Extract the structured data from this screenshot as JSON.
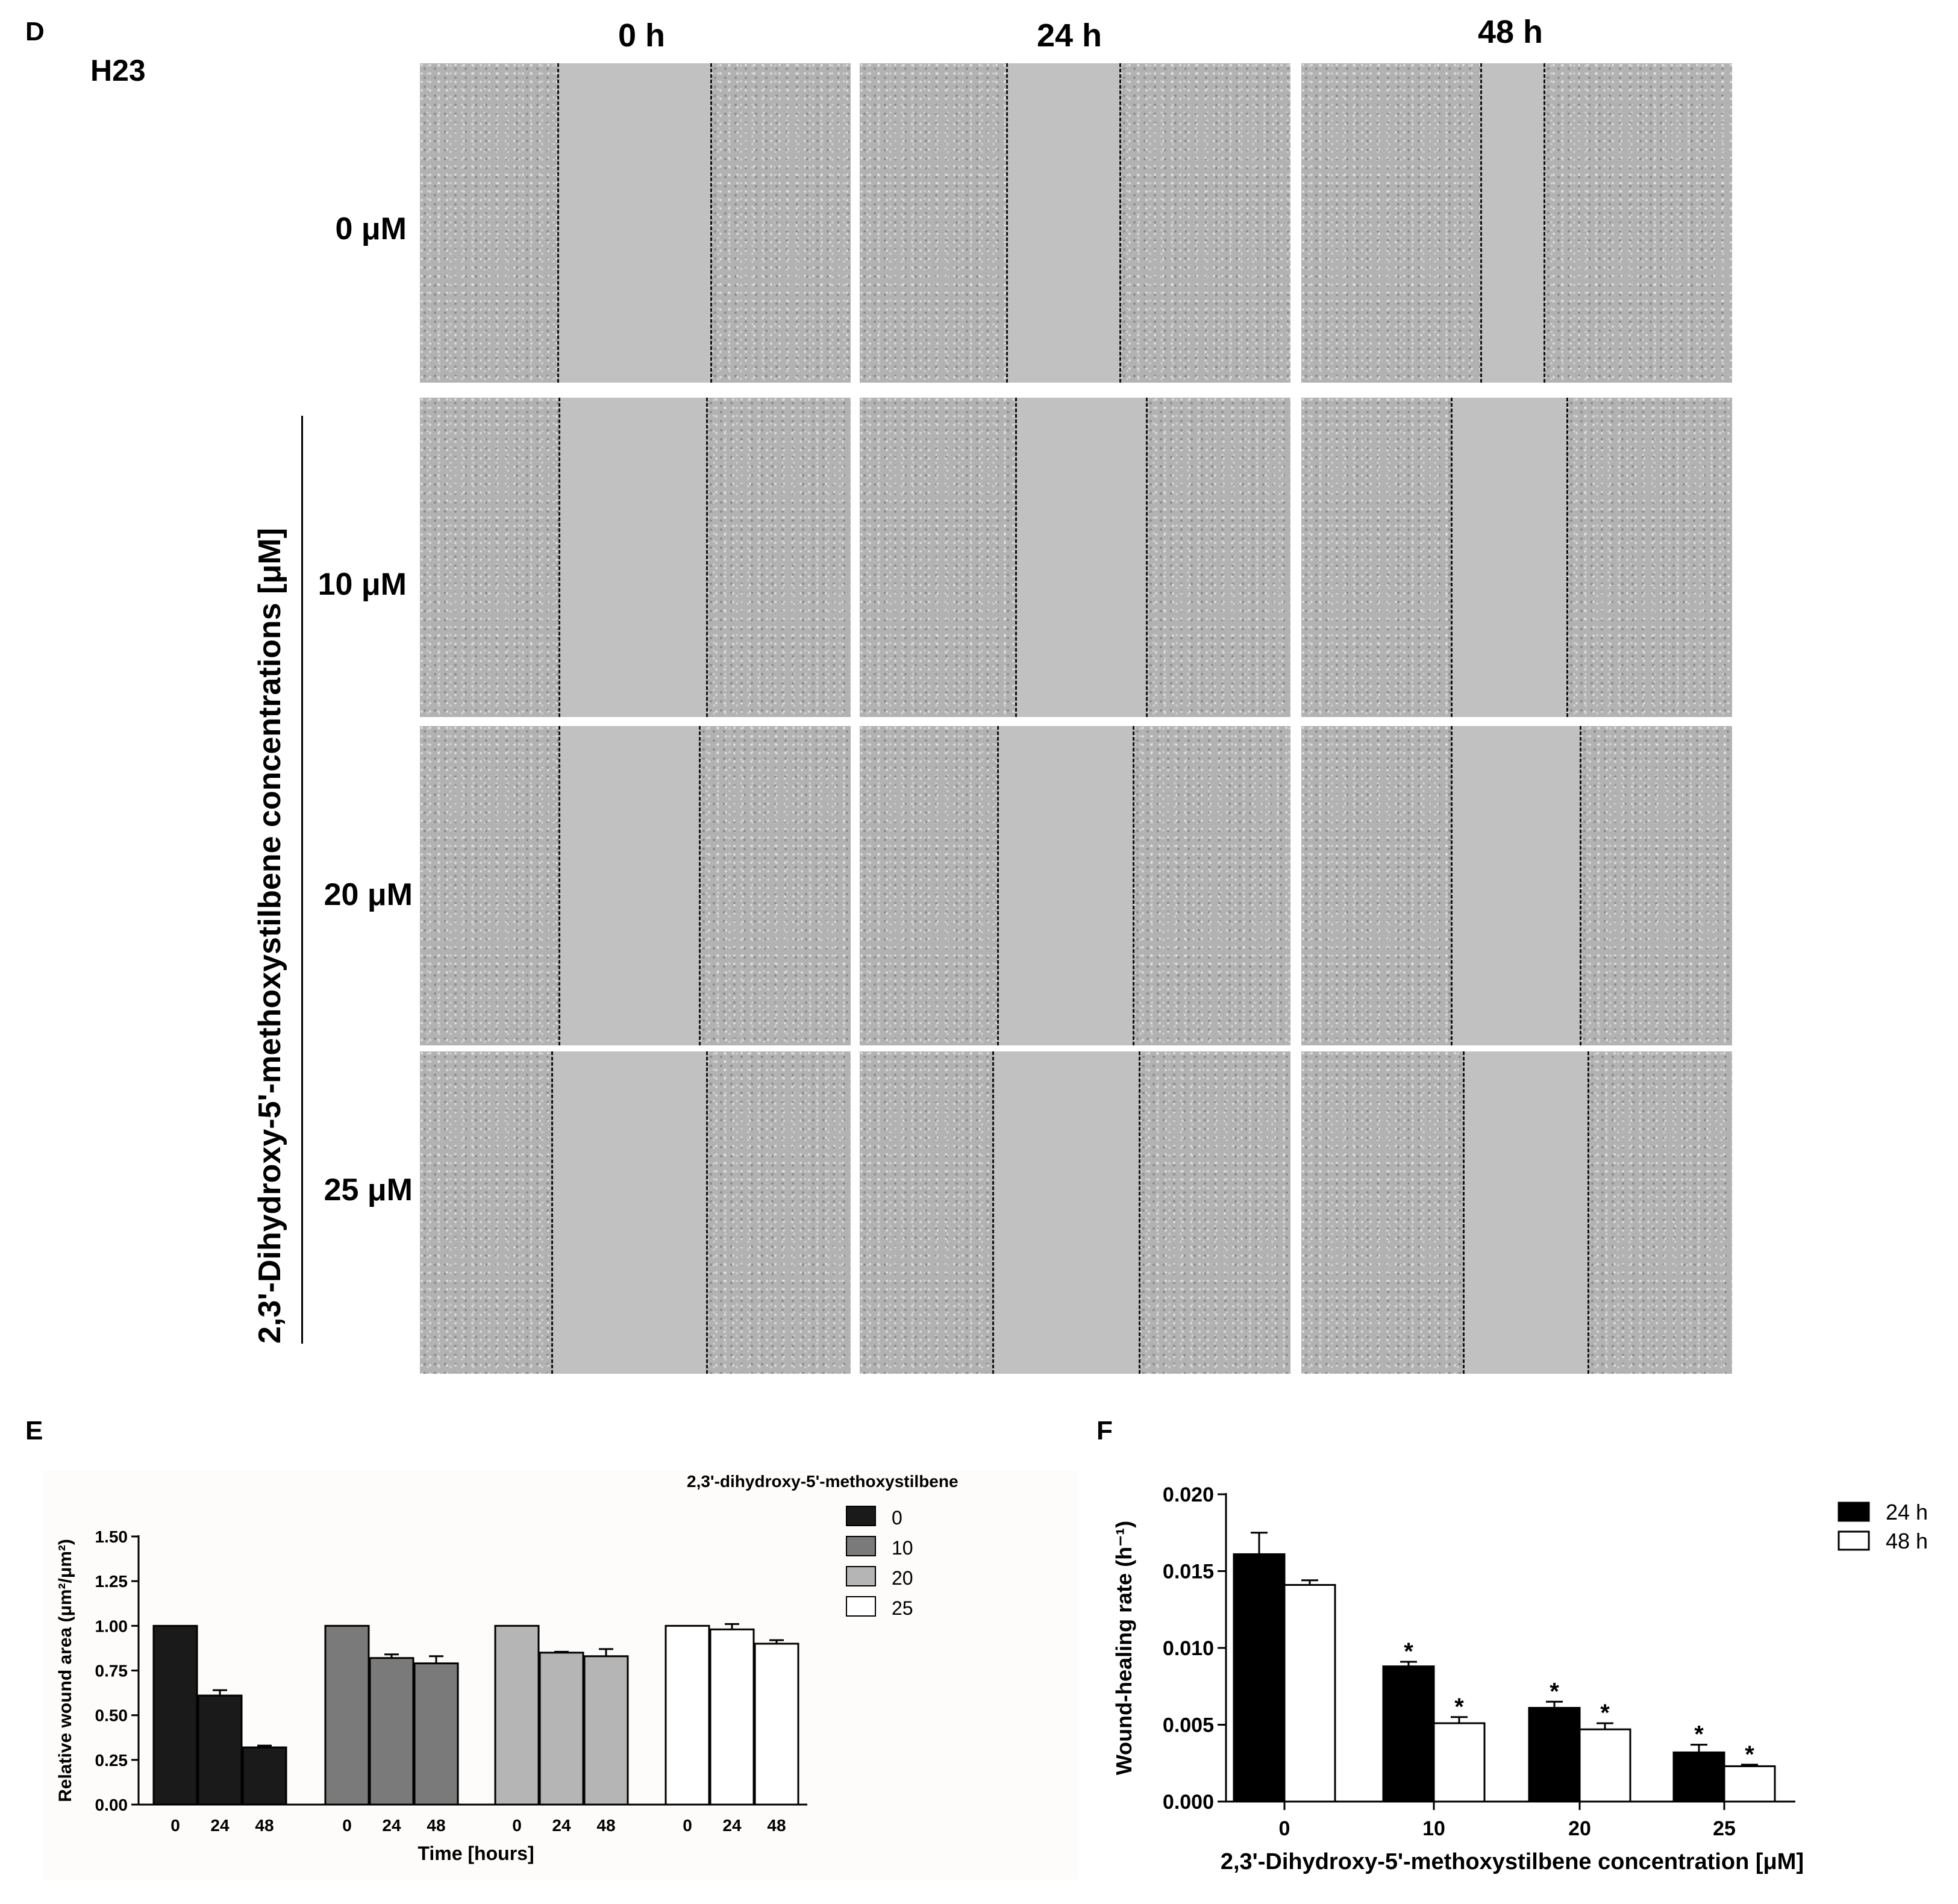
{
  "panel_d": {
    "letter": "D",
    "cell_line": "H23",
    "columns": [
      "0 h",
      "24 h",
      "48 h"
    ],
    "rows": [
      "0 μM",
      "10 μM",
      "20 μM",
      "25 μM"
    ],
    "side_title": "2,3'-Dihydroxy-5'-methoxystilbene concentrations [μM]"
  },
  "panel_e": {
    "letter": "E"
  },
  "panel_f": {
    "letter": "F"
  },
  "chart_data": [
    {
      "type": "bar",
      "panel": "E",
      "ylabel": "Relative wound area (μm²/μm²)",
      "xlabel": "Time [hours]",
      "legend_title": "2,3'-dihydroxy-5'-methoxystilbene",
      "legend_position": "top-right",
      "ylim": [
        0,
        1.5
      ],
      "yticks": [
        "0.00",
        "0.25",
        "0.50",
        "0.75",
        "1.00",
        "1.25",
        "1.50"
      ],
      "categories": [
        "0",
        "24",
        "48"
      ],
      "colors": [
        "#1a1a1a",
        "#7a7a7a",
        "#b5b5b5",
        "#ffffff"
      ],
      "series": [
        {
          "name": "0",
          "values": [
            1.0,
            0.61,
            0.32
          ],
          "errors": [
            0.0,
            0.03,
            0.01
          ]
        },
        {
          "name": "10",
          "values": [
            1.0,
            0.82,
            0.79
          ],
          "errors": [
            0.0,
            0.02,
            0.04
          ]
        },
        {
          "name": "20",
          "values": [
            1.0,
            0.85,
            0.83
          ],
          "errors": [
            0.0,
            0.005,
            0.04
          ]
        },
        {
          "name": "25",
          "values": [
            1.0,
            0.98,
            0.9
          ],
          "errors": [
            0.0,
            0.03,
            0.02
          ]
        }
      ]
    },
    {
      "type": "bar",
      "panel": "F",
      "ylabel": "Wound-healing rate (h⁻¹)",
      "xlabel": "2,3'-Dihydroxy-5'-methoxystilbene concentration [μM]",
      "legend_position": "top-right",
      "ylim": [
        0,
        0.02
      ],
      "yticks": [
        "0.000",
        "0.005",
        "0.010",
        "0.015",
        "0.020"
      ],
      "categories": [
        "0",
        "10",
        "20",
        "25"
      ],
      "colors": [
        "#000000",
        "#ffffff"
      ],
      "series": [
        {
          "name": "24 h",
          "values": [
            0.0161,
            0.0088,
            0.0061,
            0.0032
          ],
          "errors": [
            0.0014,
            0.0003,
            0.0004,
            0.0005
          ]
        },
        {
          "name": "48 h",
          "values": [
            0.0141,
            0.0051,
            0.0047,
            0.0023
          ],
          "errors": [
            0.0003,
            0.0004,
            0.0004,
            0.0001
          ]
        }
      ],
      "significance": [
        {
          "category": "10",
          "series": "24 h",
          "mark": "*"
        },
        {
          "category": "10",
          "series": "48 h",
          "mark": "*"
        },
        {
          "category": "20",
          "series": "24 h",
          "mark": "*"
        },
        {
          "category": "20",
          "series": "48 h",
          "mark": "*"
        },
        {
          "category": "25",
          "series": "24 h",
          "mark": "*"
        },
        {
          "category": "25",
          "series": "48 h",
          "mark": "*"
        }
      ]
    }
  ]
}
